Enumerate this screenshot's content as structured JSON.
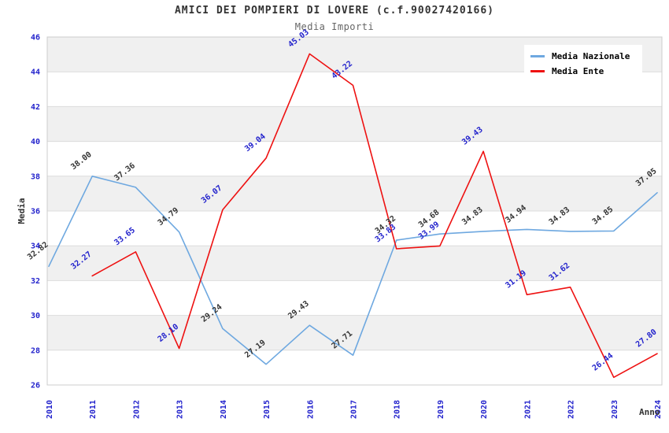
{
  "chart_data": {
    "type": "line",
    "title": "AMICI DEI POMPIERI DI LOVERE (c.f.90027420166)",
    "subtitle": "Media Importi",
    "xlabel": "Anno",
    "ylabel": "Media",
    "x": [
      2010,
      2011,
      2012,
      2013,
      2014,
      2015,
      2016,
      2017,
      2018,
      2019,
      2020,
      2021,
      2022,
      2023,
      2024
    ],
    "series": [
      {
        "name": "Media Nazionale",
        "color": "#6ea8e0",
        "label_color": "#333333",
        "values": [
          32.82,
          38.0,
          37.36,
          34.79,
          29.24,
          27.19,
          29.43,
          27.71,
          34.32,
          34.68,
          34.83,
          34.94,
          34.83,
          34.85,
          37.05
        ]
      },
      {
        "name": "Media Ente",
        "color": "#ee1111",
        "label_color": "#2222cc",
        "values": [
          null,
          32.27,
          33.65,
          28.1,
          36.07,
          39.04,
          45.03,
          43.22,
          33.83,
          33.99,
          39.43,
          31.19,
          31.62,
          26.44,
          27.8
        ]
      }
    ],
    "ylim": [
      26,
      46
    ],
    "ytick_step": 2,
    "yticks": [
      26,
      28,
      30,
      32,
      34,
      36,
      38,
      40,
      42,
      44,
      46
    ],
    "tick_label_color": "#2222cc",
    "axis_title_color": "#333333",
    "band_fill_color": "#f0f0f0",
    "gridline_color": "#dcdcdc",
    "plot_border_color": "#cccccc",
    "data_label_format": "0.00",
    "grid": "horizontal gridlines with alternating gray/white bands",
    "legend_position": "top-right",
    "legend_background": "#ffffff"
  }
}
